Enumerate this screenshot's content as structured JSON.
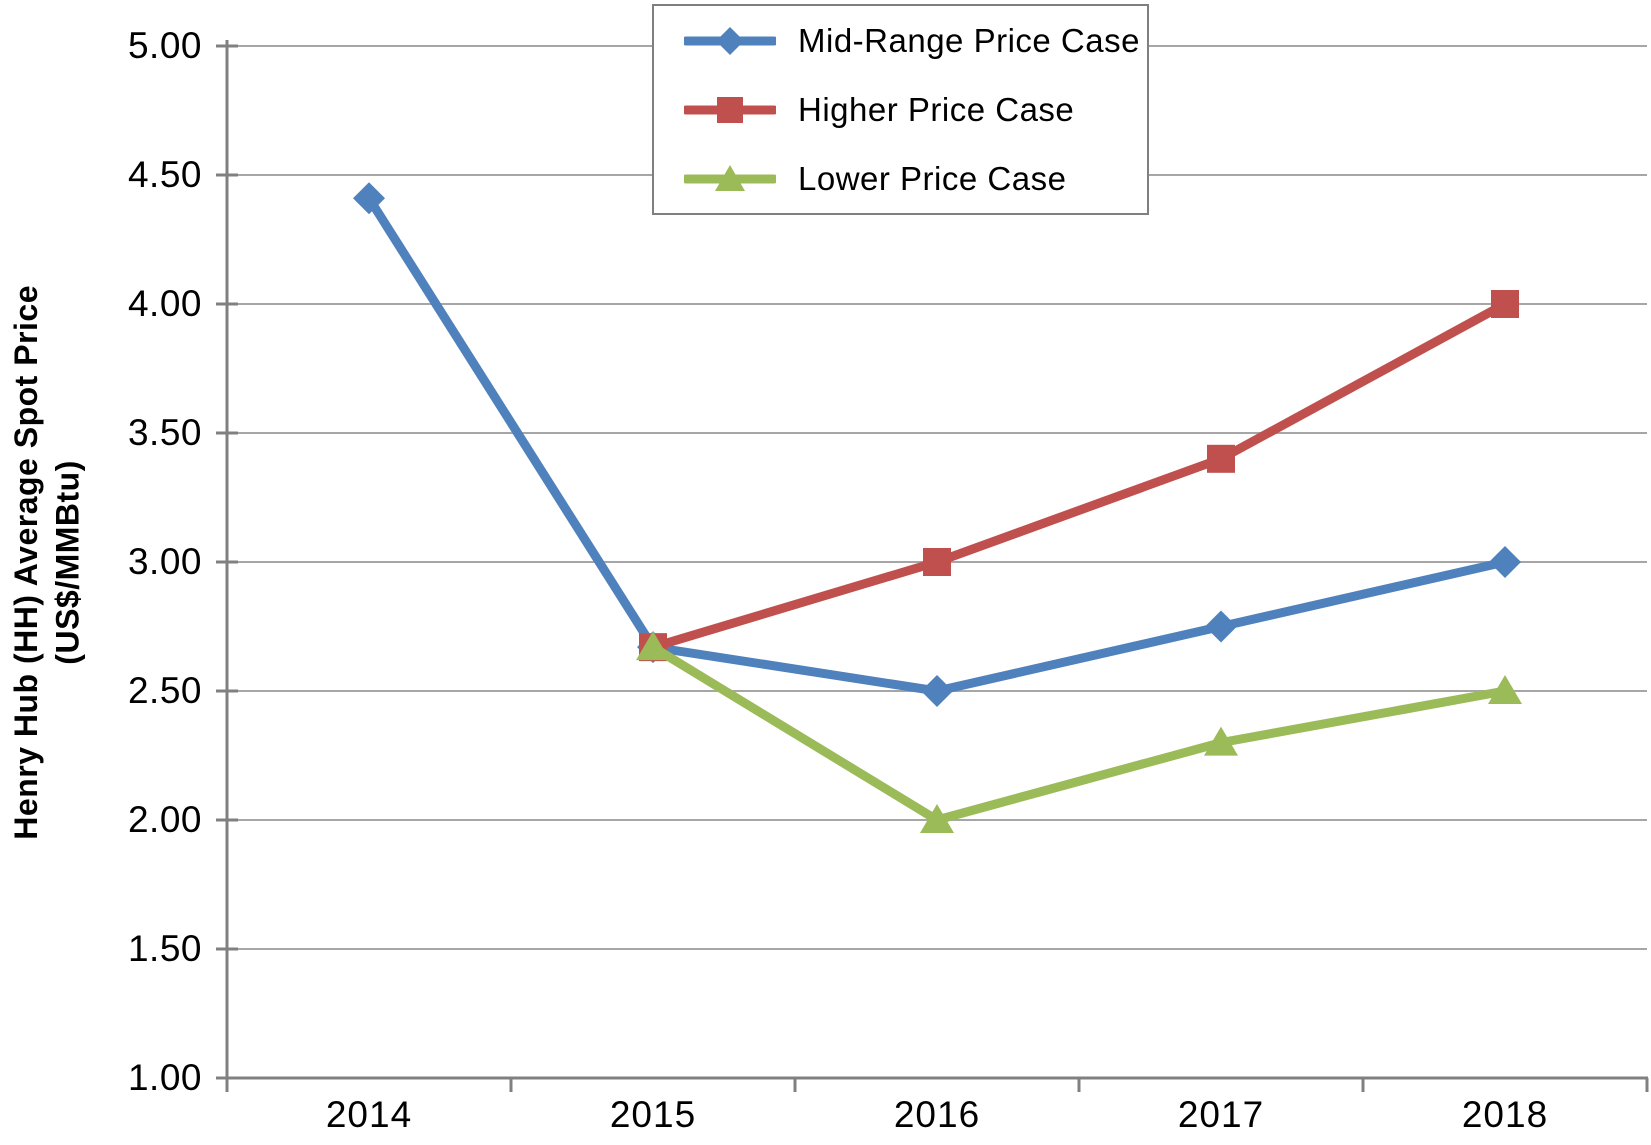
{
  "chart_data": {
    "type": "line",
    "ylabel_line1": "Henry Hub (HH) Average Spot Price",
    "ylabel_line2": "(US$/MMBtu)",
    "categories": [
      "2014",
      "2015",
      "2016",
      "2017",
      "2018"
    ],
    "series": [
      {
        "name": "Mid-Range Price Case",
        "color": "#4F81BD",
        "marker": "diamond",
        "values": [
          4.41,
          2.67,
          2.5,
          2.75,
          3.0
        ]
      },
      {
        "name": "Higher Price Case",
        "color": "#C0504D",
        "marker": "square",
        "values": [
          null,
          2.67,
          3.0,
          3.4,
          4.0
        ]
      },
      {
        "name": "Lower Price Case",
        "color": "#9BBB59",
        "marker": "triangle",
        "values": [
          null,
          2.67,
          2.0,
          2.3,
          2.5
        ]
      }
    ],
    "yticks": [
      "5.00",
      "4.50",
      "4.00",
      "3.50",
      "3.00",
      "2.50",
      "2.00",
      "1.50",
      "1.00"
    ],
    "ytick_values": [
      5.0,
      4.5,
      4.0,
      3.5,
      3.0,
      2.5,
      2.0,
      1.5,
      1.0
    ],
    "ylim": [
      1.0,
      5.0
    ],
    "grid": true,
    "legend_position": "top-center"
  },
  "colors": {
    "gridline": "#A6A6A6",
    "axis": "#808080",
    "legend_border": "#7F7F7F",
    "text": "#000000",
    "background": "#FFFFFF"
  }
}
